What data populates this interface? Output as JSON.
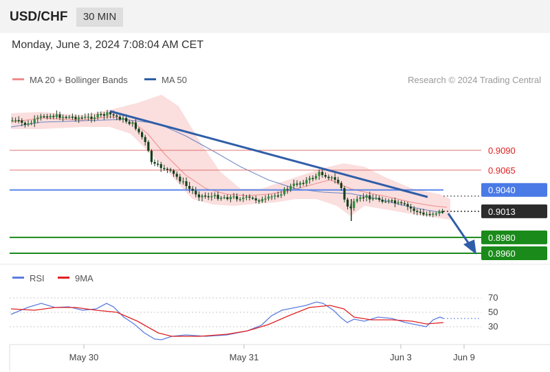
{
  "header": {
    "symbol": "USD/CHF",
    "timeframe": "30 MIN",
    "datetime": "Monday, June 3, 2024 7:08:04 AM CET"
  },
  "legend": {
    "ma20": "MA 20 + Bollinger Bands",
    "ma50": "MA 50",
    "ma20_color": "#f08c8c",
    "ma50_color": "#2f5ea8"
  },
  "credit": "Research © 2024 Trading Central",
  "rsi_legend": {
    "rsi": "RSI",
    "ma": "9MA",
    "rsi_color": "#5b7be0",
    "ma_color": "#e02020"
  },
  "chart_data": [
    {
      "type": "candlestick",
      "title": "USD/CHF",
      "x_labels": [
        "May 30",
        "May 31",
        "Jun 3",
        "Jun 9"
      ],
      "y_scale": {
        "ref_high": 0.909,
        "ref_low": 0.896
      },
      "price_levels": [
        {
          "label": "0.9090",
          "value": 0.909,
          "kind": "resistance",
          "color": "#e07070"
        },
        {
          "label": "0.9065",
          "value": 0.9065,
          "kind": "resistance",
          "color": "#e07070"
        },
        {
          "label": "0.9040",
          "value": 0.904,
          "kind": "pivot",
          "color": "#5a86e8"
        },
        {
          "label": "0.9013",
          "value": 0.9013,
          "kind": "last",
          "color": "#2b2b2b"
        },
        {
          "label": "0.8980",
          "value": 0.898,
          "kind": "support",
          "color": "#1a8a1a"
        },
        {
          "label": "0.8960",
          "value": 0.896,
          "kind": "support",
          "color": "#1a8a1a"
        }
      ],
      "series": [
        {
          "name": "MA 20 + Bollinger Bands",
          "color": "#f08c8c"
        },
        {
          "name": "MA 50",
          "color": "#2f5ea8"
        }
      ],
      "trendline": {
        "color": "#2f5ea8"
      },
      "forecast_arrow": {
        "direction": "down",
        "color": "#2f5ea8"
      }
    },
    {
      "type": "line",
      "title": "RSI",
      "series": [
        {
          "name": "RSI",
          "color": "#5b7be0"
        },
        {
          "name": "9MA",
          "color": "#e02020"
        }
      ],
      "y_ticks": [
        70,
        50,
        30
      ],
      "ylim": [
        0,
        100
      ]
    }
  ]
}
